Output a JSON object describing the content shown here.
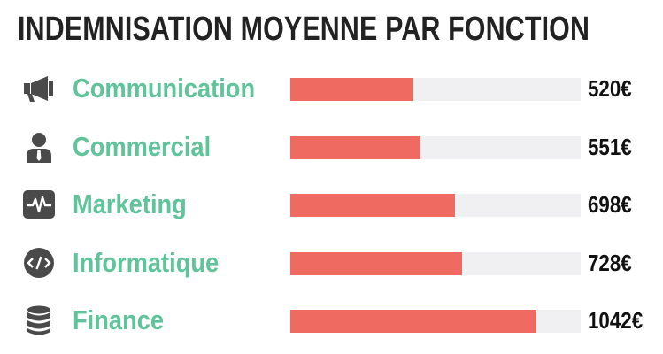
{
  "chart_data": {
    "type": "bar",
    "orientation": "horizontal",
    "title": "INDEMNISATION MOYENNE PAR FONCTION",
    "categories": [
      "Communication",
      "Commercial",
      "Marketing",
      "Informatique",
      "Finance"
    ],
    "values": [
      520,
      551,
      698,
      728,
      1042
    ],
    "value_labels": [
      "520€",
      "551€",
      "698€",
      "728€",
      "1042€"
    ],
    "icons": [
      "megaphone-icon",
      "person-icon",
      "pulse-monitor-icon",
      "code-icon",
      "database-icon"
    ],
    "xlim": [
      0,
      1230
    ],
    "grid": false,
    "legend": "none",
    "colors": {
      "bar": "#ef6b61",
      "track": "#f0f0f2",
      "category_text": "#5fc49a",
      "value_text": "#111111",
      "title": "#222222",
      "icon": "#4a4a4a"
    }
  }
}
